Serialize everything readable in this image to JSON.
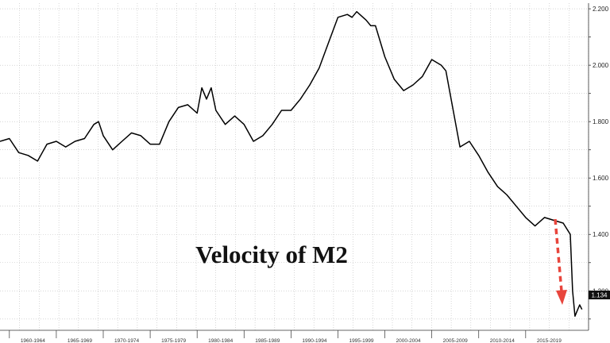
{
  "chart_data": {
    "type": "line",
    "title": "Velocity of M2",
    "xlabel": "",
    "ylabel": "",
    "ylim": [
      1.06,
      2.22
    ],
    "xlim": [
      1959,
      2021.7
    ],
    "grid": true,
    "y_ticks": [
      "2.200",
      "2.000",
      "1.800",
      "1.600",
      "1.400",
      "1.200"
    ],
    "x_tick_labels": [
      "1960-1964",
      "1965-1969",
      "1970-1974",
      "1975-1979",
      "1980-1984",
      "1985-1989",
      "1990-1994",
      "1995-1999",
      "2000-2004",
      "2005-2009",
      "2010-2014",
      "2015-2019"
    ],
    "last_value_label": "1.134",
    "line_color": "#000000",
    "annotation_arrow_color": "#e8453c",
    "series": [
      {
        "x": [
          1959.0,
          1960.0,
          1961.0,
          1962.0,
          1963.0,
          1963.5,
          1964.0,
          1965.0,
          1966.0,
          1967.0,
          1968.0,
          1969.0,
          1969.5,
          1970.0,
          1971.0,
          1972.0,
          1973.0,
          1974.0,
          1975.0,
          1976.0,
          1977.0,
          1978.0,
          1979.0,
          1980.0,
          1980.5,
          1981.0,
          1981.5,
          1982.0,
          1983.0,
          1984.0,
          1985.0,
          1986.0,
          1987.0,
          1988.0,
          1989.0,
          1990.0,
          1991.0,
          1992.0,
          1993.0,
          1994.0,
          1995.0,
          1996.0,
          1996.5,
          1997.0,
          1998.0,
          1998.5,
          1999.0,
          2000.0,
          2001.0,
          2002.0,
          2003.0,
          2004.0,
          2005.0,
          2006.0,
          2006.5,
          2007.0,
          2008.0,
          2009.0,
          2010.0,
          2011.0,
          2012.0,
          2013.0,
          2014.0,
          2015.0,
          2016.0,
          2017.0,
          2018.0,
          2019.0,
          2019.75,
          2020.0,
          2020.25,
          2020.5,
          2020.75,
          2021.0
        ],
        "values": [
          1.73,
          1.74,
          1.69,
          1.68,
          1.66,
          1.69,
          1.72,
          1.73,
          1.71,
          1.73,
          1.74,
          1.79,
          1.8,
          1.75,
          1.7,
          1.73,
          1.76,
          1.75,
          1.72,
          1.72,
          1.8,
          1.85,
          1.86,
          1.83,
          1.92,
          1.88,
          1.92,
          1.84,
          1.79,
          1.82,
          1.79,
          1.73,
          1.75,
          1.79,
          1.84,
          1.84,
          1.88,
          1.93,
          1.99,
          2.08,
          2.17,
          2.18,
          2.17,
          2.19,
          2.16,
          2.14,
          2.14,
          2.03,
          1.95,
          1.91,
          1.93,
          1.96,
          2.02,
          2.0,
          1.98,
          1.89,
          1.71,
          1.73,
          1.68,
          1.62,
          1.57,
          1.54,
          1.5,
          1.46,
          1.43,
          1.46,
          1.45,
          1.44,
          1.4,
          1.2,
          1.11,
          1.13,
          1.15,
          1.134
        ]
      }
    ]
  }
}
